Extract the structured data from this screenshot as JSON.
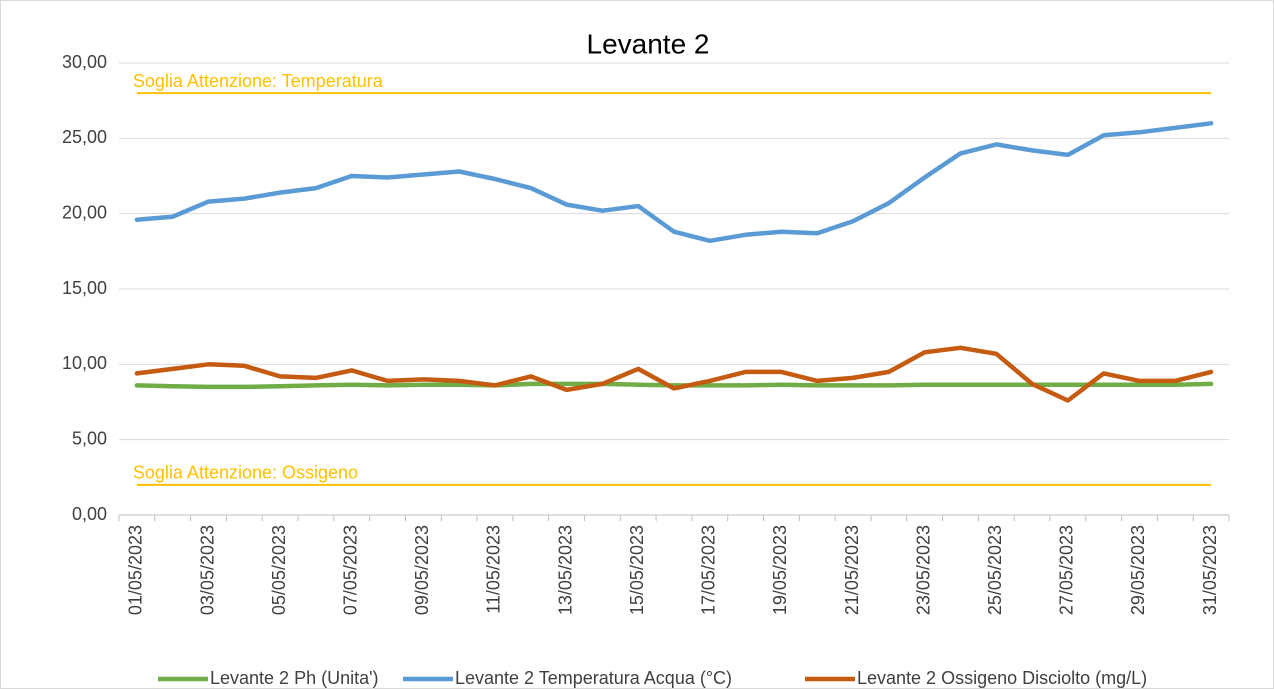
{
  "chart_data": {
    "type": "line",
    "title": "Levante 2",
    "categories": [
      "01/05/2023",
      null,
      "03/05/2023",
      null,
      "05/05/2023",
      null,
      "07/05/2023",
      null,
      "09/05/2023",
      null,
      "11/05/2023",
      null,
      "13/05/2023",
      null,
      "15/05/2023",
      null,
      "17/05/2023",
      null,
      "19/05/2023",
      null,
      "21/05/2023",
      null,
      "23/05/2023",
      null,
      "25/05/2023",
      null,
      "27/05/2023",
      null,
      "29/05/2023",
      null,
      "31/05/2023"
    ],
    "series": [
      {
        "name": "Levante 2 Ph (Unita')",
        "color": "#70ad47",
        "values": [
          8.6,
          8.55,
          8.5,
          8.5,
          8.55,
          8.6,
          8.65,
          8.6,
          8.65,
          8.65,
          8.6,
          8.7,
          8.7,
          8.7,
          8.65,
          8.6,
          8.6,
          8.6,
          8.65,
          8.6,
          8.6,
          8.6,
          8.65,
          8.65,
          8.65,
          8.65,
          8.65,
          8.65,
          8.65,
          8.65,
          8.7
        ]
      },
      {
        "name": "Levante 2 Temperatura Acqua (°C)",
        "color": "#5b9bd5",
        "values": [
          19.6,
          19.8,
          20.8,
          21.0,
          21.4,
          21.7,
          22.5,
          22.4,
          22.6,
          22.8,
          22.3,
          21.7,
          20.6,
          20.2,
          20.5,
          18.8,
          18.2,
          18.6,
          18.8,
          18.7,
          19.5,
          20.7,
          22.4,
          24.0,
          24.6,
          24.2,
          23.9,
          25.2,
          25.4,
          25.7,
          26.0
        ]
      },
      {
        "name": "Levante 2 Ossigeno Disciolto (mg/L)",
        "color": "#c55a11",
        "values": [
          9.4,
          9.7,
          10.0,
          9.9,
          9.2,
          9.1,
          9.6,
          8.9,
          9.0,
          8.9,
          8.6,
          9.2,
          8.3,
          8.7,
          9.7,
          8.4,
          8.9,
          9.5,
          9.5,
          8.9,
          9.1,
          9.5,
          10.8,
          11.1,
          10.7,
          8.7,
          7.6,
          9.4,
          8.9,
          8.9,
          9.5
        ]
      }
    ],
    "reference_lines": [
      {
        "label": "Soglia Attenzione: Temperatura",
        "value": 28,
        "color": "#ffc000"
      },
      {
        "label": "Soglia Attenzione: Ossigeno",
        "value": 2,
        "color": "#ffc000"
      }
    ],
    "ylim": [
      0,
      30
    ],
    "yticks": [
      {
        "value": 0,
        "label": "0,00"
      },
      {
        "value": 5,
        "label": "5,00"
      },
      {
        "value": 10,
        "label": "10,00"
      },
      {
        "value": 15,
        "label": "15,00"
      },
      {
        "value": 20,
        "label": "20,00"
      },
      {
        "value": 25,
        "label": "25,00"
      },
      {
        "value": 30,
        "label": "30,00"
      }
    ],
    "grid": true,
    "legend": "bottom"
  }
}
